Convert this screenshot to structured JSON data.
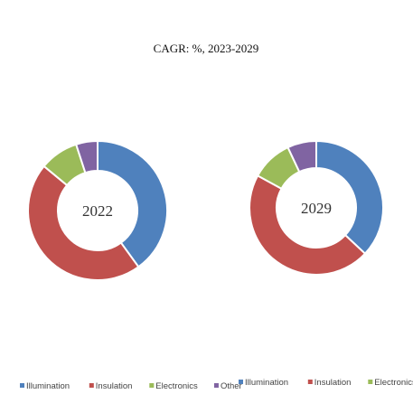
{
  "title": "CAGR:    %, 2023-2029",
  "colors": {
    "Illumination": "#4f81bd",
    "Insulation": "#c0504d",
    "Electronics": "#9bbb59",
    "Other": "#8064a2"
  },
  "chart_data": [
    {
      "type": "pie",
      "donut": true,
      "center_label": "2022",
      "categories": [
        "Illumination",
        "Insulation",
        "Electronics",
        "Other"
      ],
      "values": [
        40,
        46,
        9,
        5
      ],
      "legend": "bottom"
    },
    {
      "type": "pie",
      "donut": true,
      "center_label": "2029",
      "categories": [
        "Illumination",
        "Insulation",
        "Electronics",
        "Other"
      ],
      "values": [
        37,
        46,
        10,
        7
      ],
      "legend": "bottom"
    }
  ]
}
